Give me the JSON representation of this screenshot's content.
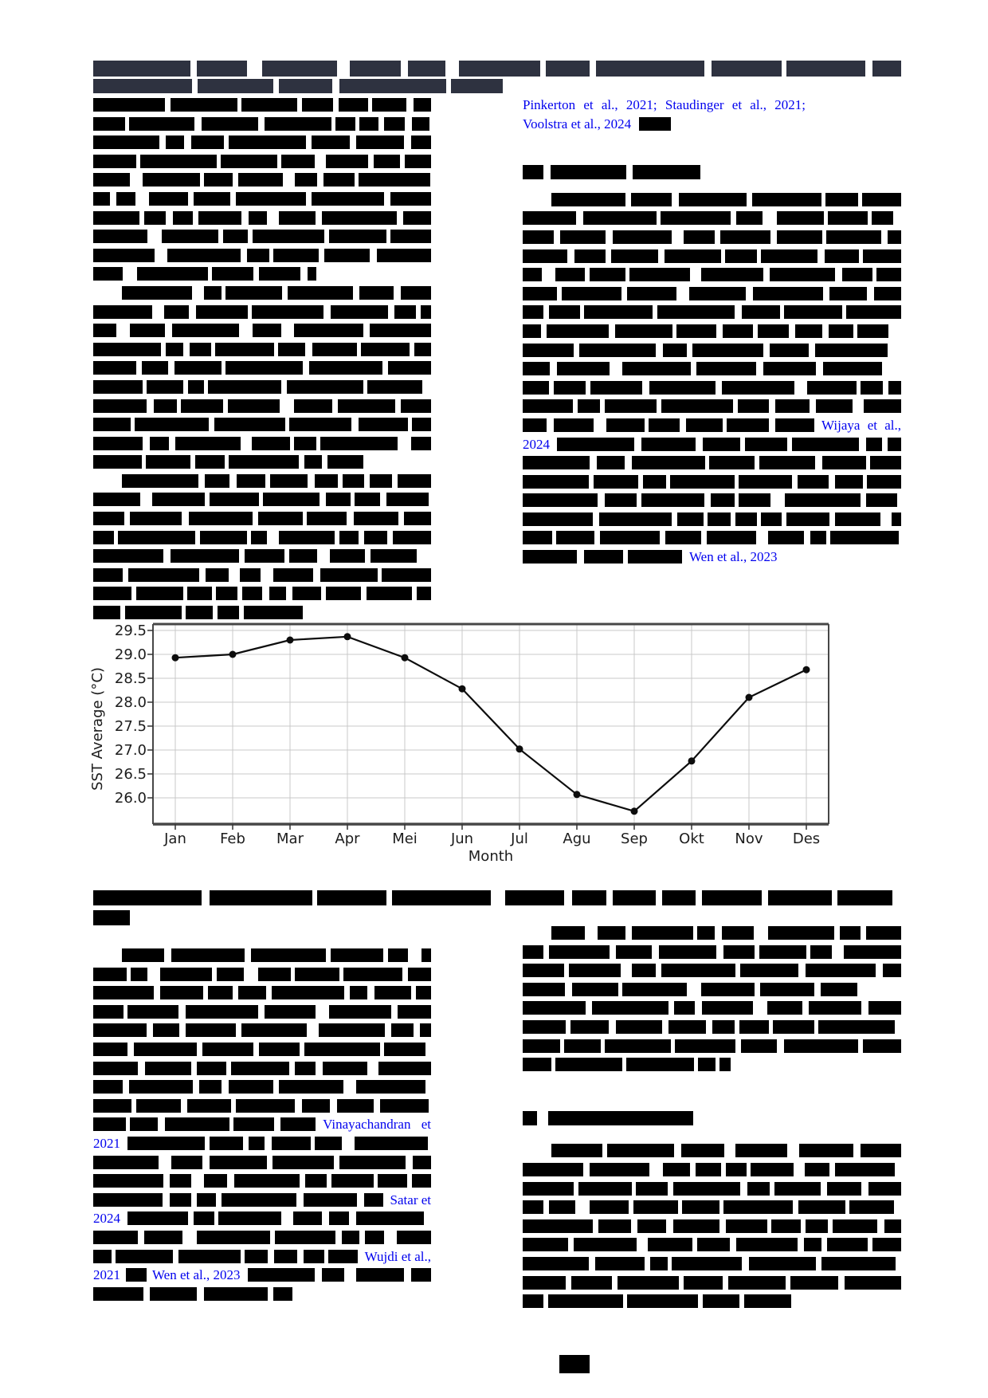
{
  "theme": {
    "link_blue": "#0101ee",
    "title_navy": "#2e3240",
    "redaction_black": "#000000",
    "grid_gray": "#c9c9c9",
    "spine_gray": "#474747"
  },
  "citations": {
    "pinkerton_line": "Pinkerton et al., 2021; Staudinger et al., 2021;",
    "voolstra_line": "Voolstra et al., 2024",
    "wijaya": "Wijaya et al.,",
    "wijaya_year": "2024",
    "wen_upper": "Wen et al., 2023",
    "vinayachandran": "Vinayachandran  et",
    "vinayachandran_year": "2021",
    "satar": "Satar et",
    "satar_year": "2024",
    "wujdi": "Wujdi et al.,",
    "wujdi_year": "2021",
    "wen_lower": "Wen et al., 2023"
  },
  "chart_data": {
    "type": "line",
    "x": [
      "Jan",
      "Feb",
      "Mar",
      "Apr",
      "Mei",
      "Jun",
      "Jul",
      "Agu",
      "Sep",
      "Okt",
      "Nov",
      "Des"
    ],
    "series": [
      {
        "name": "SST Average",
        "values": [
          28.93,
          29.0,
          29.3,
          29.37,
          28.93,
          28.28,
          27.02,
          26.07,
          25.72,
          26.77,
          28.1,
          28.68
        ]
      }
    ],
    "xlabel": "Month",
    "ylabel": "SST Average (°C)",
    "ylim": [
      25.45,
      29.65
    ],
    "yticks": [
      26.0,
      26.5,
      27.0,
      27.5,
      28.0,
      28.5,
      29.0,
      29.5
    ],
    "grid": true,
    "legend": "none",
    "line_color": "#0d0d0d",
    "marker": "circle"
  }
}
